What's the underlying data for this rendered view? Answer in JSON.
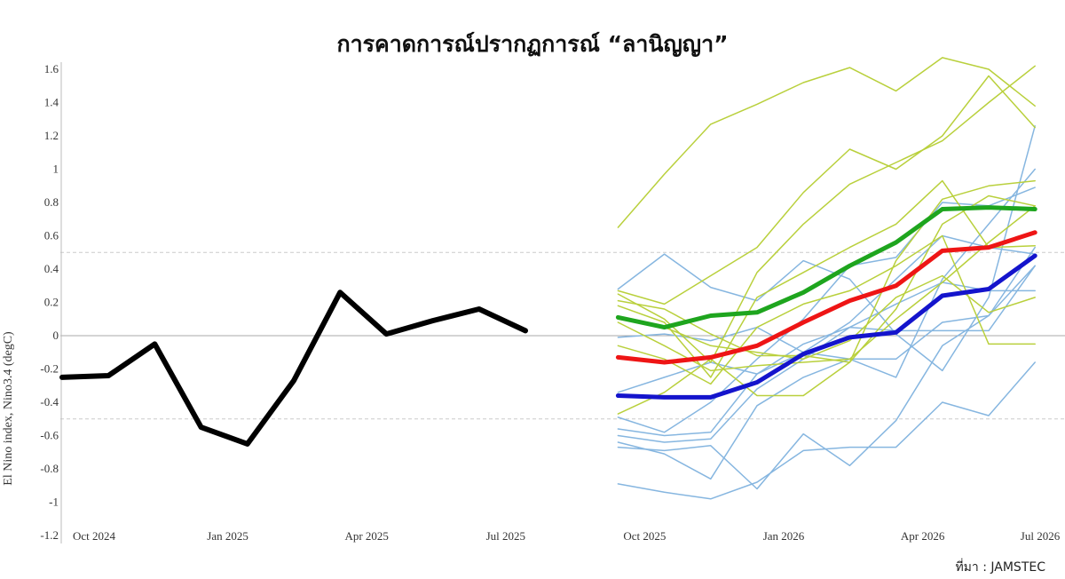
{
  "title": "การคาดการณ์ปรากฏการณ์ “ลานิญญา”",
  "source": "ที่มา : JAMSTEC",
  "chart_data": {
    "type": "line",
    "title": "การคาดการณ์ปรากฏการณ์ “ลานิญญา”",
    "ylabel": "El Nino index, Nino3.4 (degC)",
    "xlabel": "",
    "ylim": [
      -1.2,
      1.6
    ],
    "yticks": [
      "1.6",
      "1.4",
      "1.2",
      "1",
      "0.8",
      "0.6",
      "0.4",
      "0.2",
      "0",
      "-0.2",
      "-0.4",
      "-0.6",
      "-0.8",
      "-1",
      "-1.2"
    ],
    "xticks": [
      "Oct 2024",
      "Jan 2025",
      "Apr 2025",
      "Jul 2025",
      "Oct 2025",
      "Jan 2026",
      "Apr 2026",
      "Jul 2026"
    ],
    "reference_lines": [
      {
        "y": 0,
        "style": "solid"
      },
      {
        "y": 0.5,
        "style": "dashed"
      },
      {
        "y": -0.5,
        "style": "dashed"
      }
    ],
    "grid": false,
    "colors": {
      "observed": "#000000",
      "green": "#1ea51e",
      "red": "#ee1515",
      "blue": "#1414cc",
      "member_green": "#b9d03c",
      "member_blue": "#86b6e0"
    },
    "observed": {
      "x": [
        "Oct 2024",
        "Nov 2024",
        "Dec 2024",
        "Jan 2025",
        "Feb 2025",
        "Mar 2025",
        "Apr 2025",
        "May 2025",
        "Jun 2025",
        "Jul 2025",
        "Aug 2025"
      ],
      "values": [
        -0.25,
        -0.24,
        -0.05,
        -0.55,
        -0.65,
        -0.27,
        0.26,
        0.01,
        0.09,
        0.16,
        0.03
      ]
    },
    "forecast_x": [
      "Oct 2025",
      "Nov 2025",
      "Dec 2025",
      "Jan 2026",
      "Feb 2026",
      "Mar 2026",
      "Apr 2026",
      "May 2026",
      "Jun 2026",
      "Jul 2026"
    ],
    "forecast_series": [
      {
        "color": "green",
        "values": [
          0.11,
          0.05,
          0.12,
          0.14,
          0.26,
          0.42,
          0.56,
          0.76,
          0.77,
          0.76
        ]
      },
      {
        "color": "red",
        "values": [
          -0.13,
          -0.16,
          -0.13,
          -0.06,
          0.08,
          0.21,
          0.3,
          0.51,
          0.53,
          0.62
        ]
      },
      {
        "color": "blue",
        "values": [
          -0.36,
          -0.37,
          -0.37,
          -0.28,
          -0.11,
          -0.01,
          0.02,
          0.24,
          0.28,
          0.48
        ]
      }
    ],
    "members_green": [
      [
        0.65,
        0.97,
        1.27,
        1.39,
        1.52,
        1.61,
        1.47,
        1.67,
        1.6,
        1.38
      ],
      [
        0.27,
        0.19,
        0.36,
        0.53,
        0.86,
        1.12,
        1.0,
        1.2,
        1.56,
        1.25
      ],
      [
        0.25,
        0.1,
        -0.16,
        0.38,
        0.67,
        0.91,
        1.04,
        1.17,
        1.4,
        1.62
      ],
      [
        -0.47,
        -0.34,
        -0.14,
        -0.36,
        -0.36,
        -0.16,
        0.45,
        0.82,
        0.9,
        0.93
      ],
      [
        0.21,
        0.16,
        0.01,
        -0.12,
        -0.12,
        -0.16,
        0.16,
        0.67,
        0.84,
        0.78
      ],
      [
        0.18,
        0.08,
        -0.25,
        0.23,
        0.38,
        0.53,
        0.67,
        0.93,
        0.53,
        0.54
      ],
      [
        -0.06,
        -0.14,
        -0.29,
        0.05,
        0.19,
        0.27,
        0.42,
        0.6,
        -0.05,
        -0.05
      ],
      [
        0.1,
        0.05,
        -0.06,
        -0.1,
        -0.14,
        -0.03,
        0.23,
        0.36,
        0.14,
        0.23
      ],
      [
        0.08,
        -0.06,
        -0.21,
        -0.18,
        -0.16,
        -0.14,
        0.1,
        0.32,
        0.56,
        0.78
      ]
    ],
    "members_blue": [
      [
        0.28,
        0.49,
        0.29,
        0.21,
        0.45,
        0.34,
        0.01,
        -0.21,
        0.23,
        1.26
      ],
      [
        -0.01,
        0.01,
        -0.03,
        0.05,
        -0.1,
        -0.14,
        -0.25,
        0.34,
        0.67,
        1.0
      ],
      [
        -0.34,
        -0.25,
        -0.16,
        -0.23,
        -0.1,
        0.08,
        0.34,
        0.6,
        0.53,
        0.49
      ],
      [
        -0.49,
        -0.58,
        -0.4,
        -0.14,
        0.1,
        0.42,
        0.47,
        0.8,
        0.78,
        0.89
      ],
      [
        -0.56,
        -0.6,
        -0.58,
        -0.23,
        -0.05,
        0.05,
        0.19,
        0.32,
        0.27,
        0.27
      ],
      [
        -0.6,
        -0.64,
        -0.62,
        -0.32,
        -0.14,
        0.05,
        0.03,
        0.03,
        0.03,
        0.42
      ],
      [
        -0.64,
        -0.71,
        -0.86,
        -0.42,
        -0.25,
        -0.14,
        -0.14,
        0.08,
        0.12,
        0.42
      ],
      [
        -0.67,
        -0.69,
        -0.66,
        -0.92,
        -0.59,
        -0.78,
        -0.51,
        -0.06,
        0.12,
        0.53
      ],
      [
        -0.89,
        -0.94,
        -0.98,
        -0.88,
        -0.69,
        -0.67,
        -0.67,
        -0.4,
        -0.48,
        -0.16
      ]
    ]
  }
}
